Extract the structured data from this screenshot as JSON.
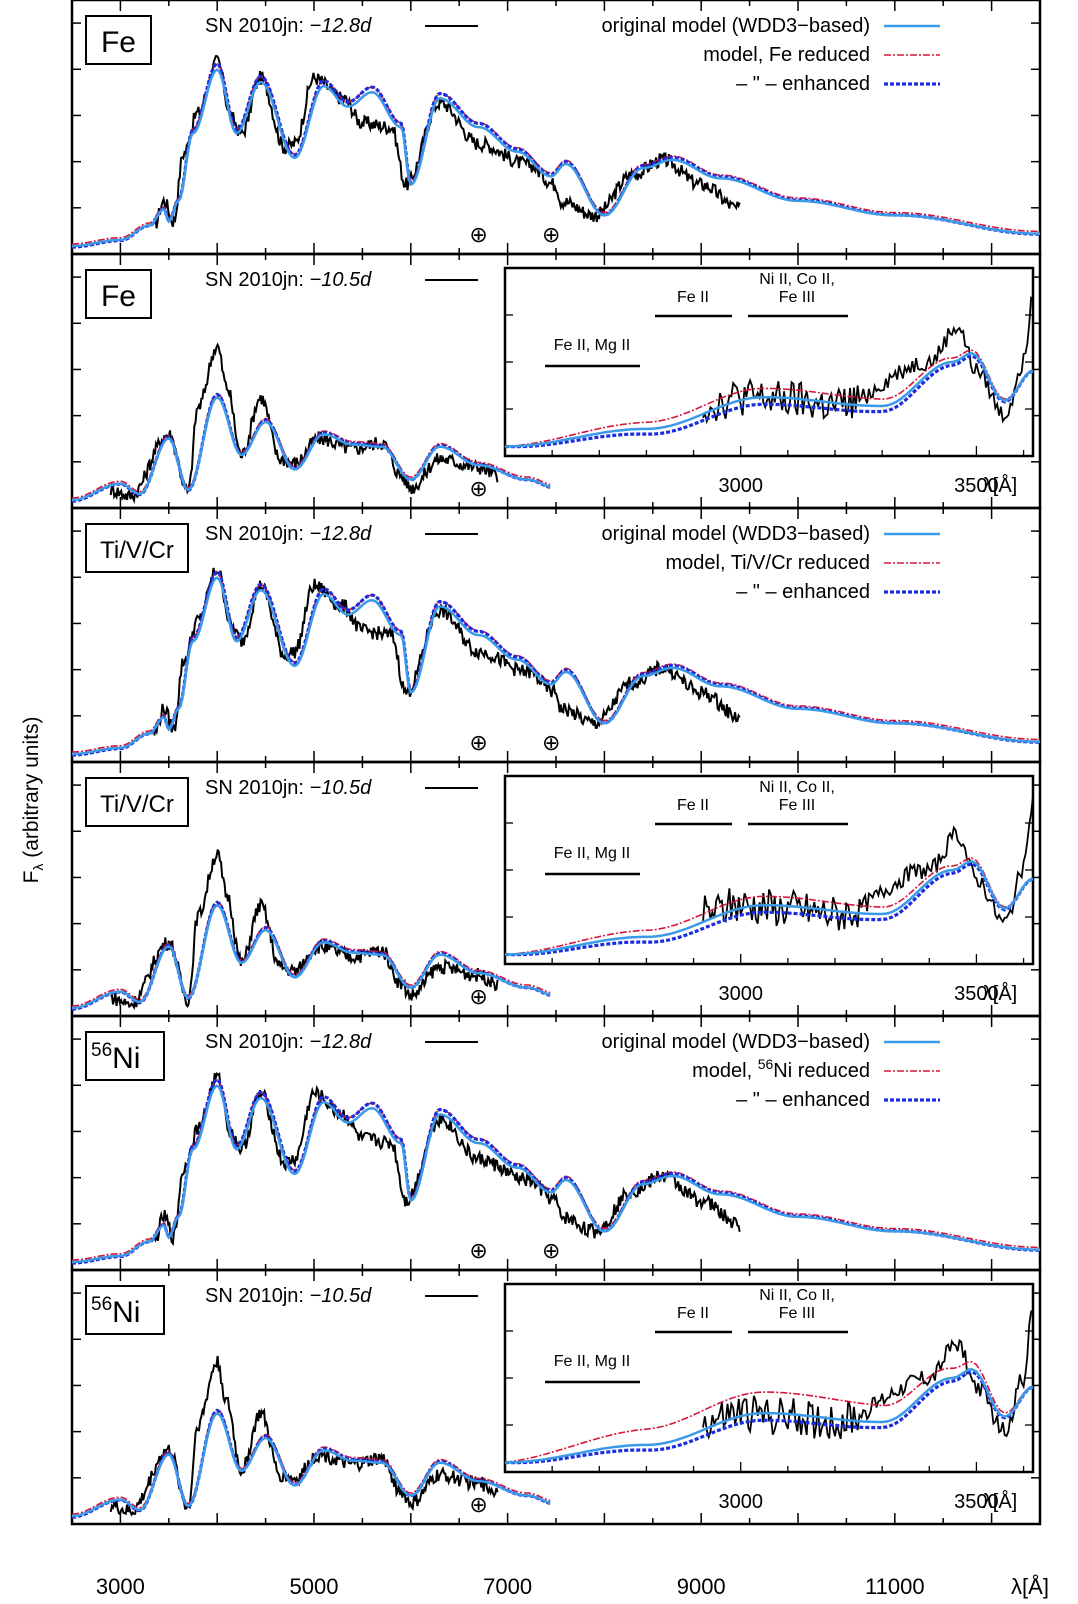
{
  "figure": {
    "y_axis_label_main": "F",
    "y_axis_label_sub": "λ",
    "y_axis_label_rest": " (arbitrary units)",
    "x_axis_unit": "λ[Å]"
  },
  "colors": {
    "observed": "#000000",
    "original_model": "#3a9ae8",
    "reduced": "#d6173c",
    "enhanced": "#1a2ee0"
  },
  "symbols": {
    "telluric": "⊕"
  },
  "chart_data": {
    "type": "line",
    "xlim": [
      2500,
      12500
    ],
    "xticks": [
      3000,
      5000,
      7000,
      9000,
      11000
    ],
    "inset_xticks": [
      3000,
      3500
    ],
    "panels": [
      {
        "element": "Fe",
        "epoch_label": "SN 2010jn: ",
        "epoch": "−12.8d",
        "legend": [
          {
            "label": "original model (WDD3−based)",
            "style": "original"
          },
          {
            "label": "model, Fe reduced",
            "style": "reduced"
          },
          {
            "label": "– \" –     enhanced",
            "style": "enhanced"
          }
        ],
        "telluric_x": [
          6700,
          7450
        ],
        "has_inset": false
      },
      {
        "element": "Fe",
        "epoch_label": "SN 2010jn: ",
        "epoch": "−10.5d",
        "legend": [],
        "telluric_x": [
          6700
        ],
        "has_inset": true,
        "inset_labels": [
          {
            "text": "Fe II, Mg II",
            "lines": 1
          },
          {
            "text": "Fe II",
            "lines": 1
          },
          {
            "text": "Ni II, Co II,",
            "line2": "Fe III"
          }
        ],
        "inset_variant": "fe"
      },
      {
        "element": "Ti/V/Cr",
        "epoch_label": "SN 2010jn: ",
        "epoch": "−12.8d",
        "legend": [
          {
            "label": "original model (WDD3−based)",
            "style": "original"
          },
          {
            "label": "model, Ti/V/Cr reduced",
            "style": "reduced"
          },
          {
            "label": "– \" –     enhanced",
            "style": "enhanced"
          }
        ],
        "telluric_x": [
          6700,
          7450
        ],
        "has_inset": false
      },
      {
        "element": "Ti/V/Cr",
        "epoch_label": "SN 2010jn: ",
        "epoch": "−10.5d",
        "legend": [],
        "telluric_x": [
          6700
        ],
        "has_inset": true,
        "inset_labels": [
          {
            "text": "Fe II, Mg II",
            "lines": 1
          },
          {
            "text": "Fe II",
            "lines": 1
          },
          {
            "text": "Ni II, Co II,",
            "line2": "Fe III"
          }
        ],
        "inset_variant": "tivcr"
      },
      {
        "element": "56Ni",
        "element_sup": "56",
        "element_main": "Ni",
        "epoch_label": "SN 2010jn: ",
        "epoch": "−12.8d",
        "legend": [
          {
            "label": "original model (WDD3−based)",
            "style": "original"
          },
          {
            "label": "model, 56Ni reduced",
            "sup": "56",
            "pre": "model, ",
            "post": "Ni reduced",
            "style": "reduced"
          },
          {
            "label": "– \" –     enhanced",
            "style": "enhanced"
          }
        ],
        "telluric_x": [
          6700,
          7450
        ],
        "has_inset": false
      },
      {
        "element": "56Ni",
        "element_sup": "56",
        "element_main": "Ni",
        "epoch_label": "SN 2010jn: ",
        "epoch": "−10.5d",
        "legend": [],
        "telluric_x": [
          6700
        ],
        "has_inset": true,
        "inset_labels": [
          {
            "text": "Fe II, Mg II",
            "lines": 1
          },
          {
            "text": "Fe II",
            "lines": 1
          },
          {
            "text": "Ni II, Co II,",
            "line2": "Fe III"
          }
        ],
        "inset_variant": "ni"
      }
    ]
  }
}
